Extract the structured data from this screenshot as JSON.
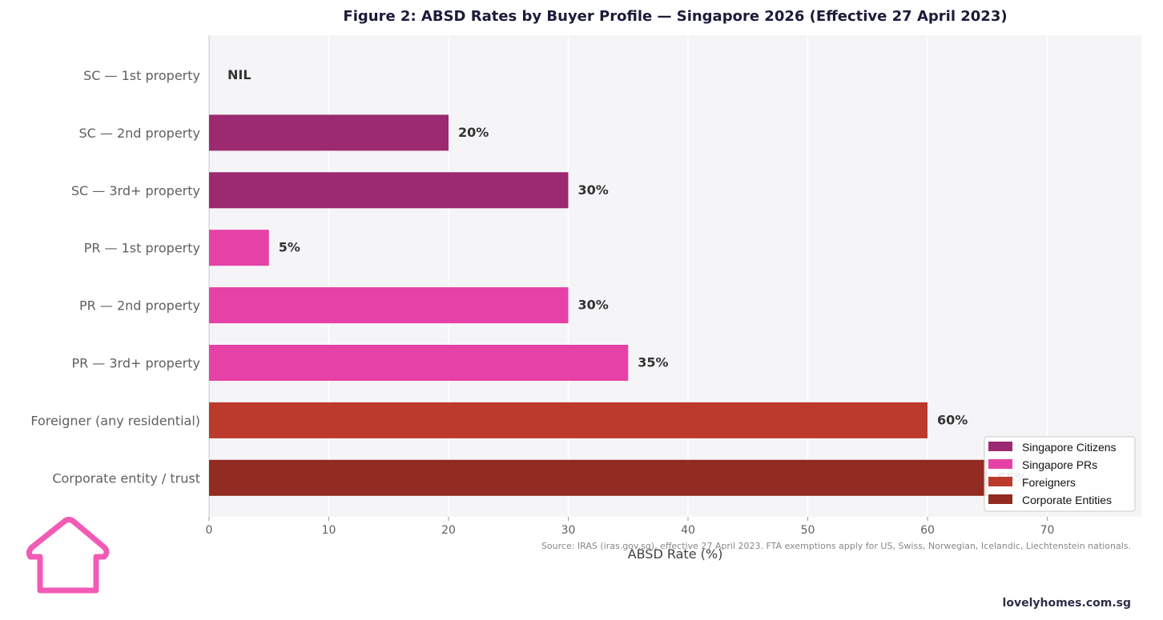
{
  "chart_data": {
    "type": "bar",
    "orientation": "horizontal",
    "title": "Figure 2: ABSD Rates by Buyer Profile — Singapore 2026 (Effective 27 April 2023)",
    "xlabel": "ABSD Rate (%)",
    "ylabel": "",
    "xlim": [
      0,
      78
    ],
    "xticks": [
      0,
      10,
      20,
      30,
      40,
      50,
      60,
      70
    ],
    "grid": "vertical",
    "legend_position": "bottom-right",
    "categories": [
      "SC — 1st property",
      "SC — 2nd property",
      "SC — 3rd+ property",
      "PR — 1st property",
      "PR — 2nd property",
      "PR — 3rd+ property",
      "Foreigner (any residential)",
      "Corporate entity / trust"
    ],
    "values": [
      0,
      20,
      30,
      5,
      30,
      35,
      60,
      65
    ],
    "data_labels": [
      "NIL",
      "20%",
      "30%",
      "5%",
      "30%",
      "35%",
      "60%",
      "65%"
    ],
    "groups": [
      0,
      0,
      0,
      1,
      1,
      1,
      2,
      3
    ],
    "legend": [
      {
        "name": "Singapore Citizens",
        "color": "#9b2a70"
      },
      {
        "name": "Singapore PRs",
        "color": "#e541a6"
      },
      {
        "name": "Foreigners",
        "color": "#bb3a2c"
      },
      {
        "name": "Corporate Entities",
        "color": "#922b21"
      }
    ]
  },
  "footer": {
    "source": "Source: IRAS (iras.gov.sg), effective 27 April 2023. FTA exemptions apply for US, Swiss, Norwegian, Icelandic, Liechtenstein nationals.",
    "brand": "lovelyhomes.com.sg"
  },
  "logo": {
    "icon": "house-icon",
    "color": "#f25bb5"
  }
}
